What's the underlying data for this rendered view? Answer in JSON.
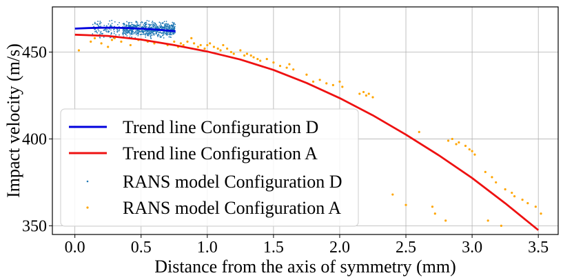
{
  "chart_data": {
    "type": "scatter",
    "title": "",
    "xlabel": "Distance from the axis of symmetry (mm)",
    "ylabel": "Impact velocity (m/s)",
    "xlim": [
      -0.17,
      3.65
    ],
    "ylim": [
      345,
      476
    ],
    "xticks": [
      0.0,
      0.5,
      1.0,
      1.5,
      2.0,
      2.5,
      3.0,
      3.5
    ],
    "xtick_labels": [
      "0.0",
      "0.5",
      "1.0",
      "1.5",
      "2.0",
      "2.5",
      "3.0",
      "3.5"
    ],
    "yticks": [
      350,
      400,
      450
    ],
    "ytick_labels": [
      "350",
      "400",
      "450"
    ],
    "grid": true,
    "legend_position": "lower-left",
    "legend": [
      "Trend line Configuration D",
      "Trend line Configuration A",
      "RANS model Configuration D",
      "RANS model Configuration A"
    ],
    "series": [
      {
        "name": "Trend line Configuration D",
        "kind": "line",
        "color": "#0000dd",
        "x": [
          0.0,
          0.1,
          0.2,
          0.3,
          0.4,
          0.5,
          0.6,
          0.7,
          0.76
        ],
        "y": [
          463.5,
          463.8,
          464.0,
          464.0,
          463.8,
          463.5,
          463.0,
          462.4,
          462.0
        ]
      },
      {
        "name": "Trend line Configuration A",
        "kind": "line",
        "color": "#ee1111",
        "x": [
          0.0,
          0.25,
          0.5,
          0.75,
          1.0,
          1.25,
          1.5,
          1.75,
          2.0,
          2.25,
          2.5,
          2.75,
          3.0,
          3.25,
          3.5
        ],
        "y": [
          460.0,
          459.3,
          457.2,
          454.0,
          450.3,
          445.7,
          439.7,
          432.2,
          423.5,
          413.6,
          402.5,
          390.5,
          377.5,
          363.0,
          347.5
        ]
      },
      {
        "name": "RANS model Configuration D",
        "kind": "scatter",
        "color": "#1f77b4",
        "cloud": [
          {
            "x_range": [
              0.13,
              0.34
            ],
            "y_range": [
              456,
              470
            ],
            "count": 110
          },
          {
            "x_range": [
              0.36,
              0.76
            ],
            "y_range": [
              457,
              469
            ],
            "count": 650
          }
        ]
      },
      {
        "name": "RANS model Configuration A",
        "kind": "scatter",
        "color": "#ffa500",
        "x": [
          0.03,
          0.12,
          0.15,
          0.2,
          0.25,
          0.28,
          0.3,
          0.35,
          0.42,
          0.48,
          0.55,
          0.6,
          0.7,
          0.75,
          0.78,
          0.8,
          0.82,
          0.85,
          0.88,
          0.9,
          0.93,
          0.95,
          0.98,
          1.0,
          1.02,
          1.05,
          1.08,
          1.1,
          1.12,
          1.15,
          1.18,
          1.2,
          1.25,
          1.28,
          1.3,
          1.33,
          1.35,
          1.38,
          1.4,
          1.45,
          1.5,
          1.55,
          1.6,
          1.62,
          1.65,
          1.75,
          1.8,
          1.85,
          1.9,
          1.95,
          2.0,
          2.02,
          2.15,
          2.18,
          2.2,
          2.22,
          2.25,
          2.4,
          2.5,
          2.6,
          2.7,
          2.72,
          2.8,
          2.82,
          2.85,
          2.88,
          2.9,
          2.95,
          2.98,
          3.0,
          3.02,
          3.1,
          3.12,
          3.15,
          3.18,
          3.22,
          3.25,
          3.3,
          3.32,
          3.38,
          3.42,
          3.48,
          3.52
        ],
        "y": [
          451,
          456,
          458,
          455,
          453,
          457,
          458,
          456,
          454,
          457,
          456,
          455,
          454,
          456,
          453,
          455,
          454,
          456,
          458,
          455,
          453,
          454,
          452,
          454,
          455,
          453,
          452,
          451,
          454,
          452,
          450,
          449,
          451,
          448,
          449,
          448,
          447,
          446,
          445,
          446,
          444,
          442,
          441,
          443,
          440,
          437,
          433,
          434,
          432,
          431,
          433,
          430,
          426,
          427,
          425,
          426,
          424,
          368,
          362,
          404,
          361,
          357,
          353,
          399,
          400,
          397,
          398,
          396,
          394,
          393,
          391,
          381,
          353,
          378,
          375,
          350,
          371,
          369,
          367,
          365,
          363,
          361,
          357
        ]
      }
    ]
  }
}
